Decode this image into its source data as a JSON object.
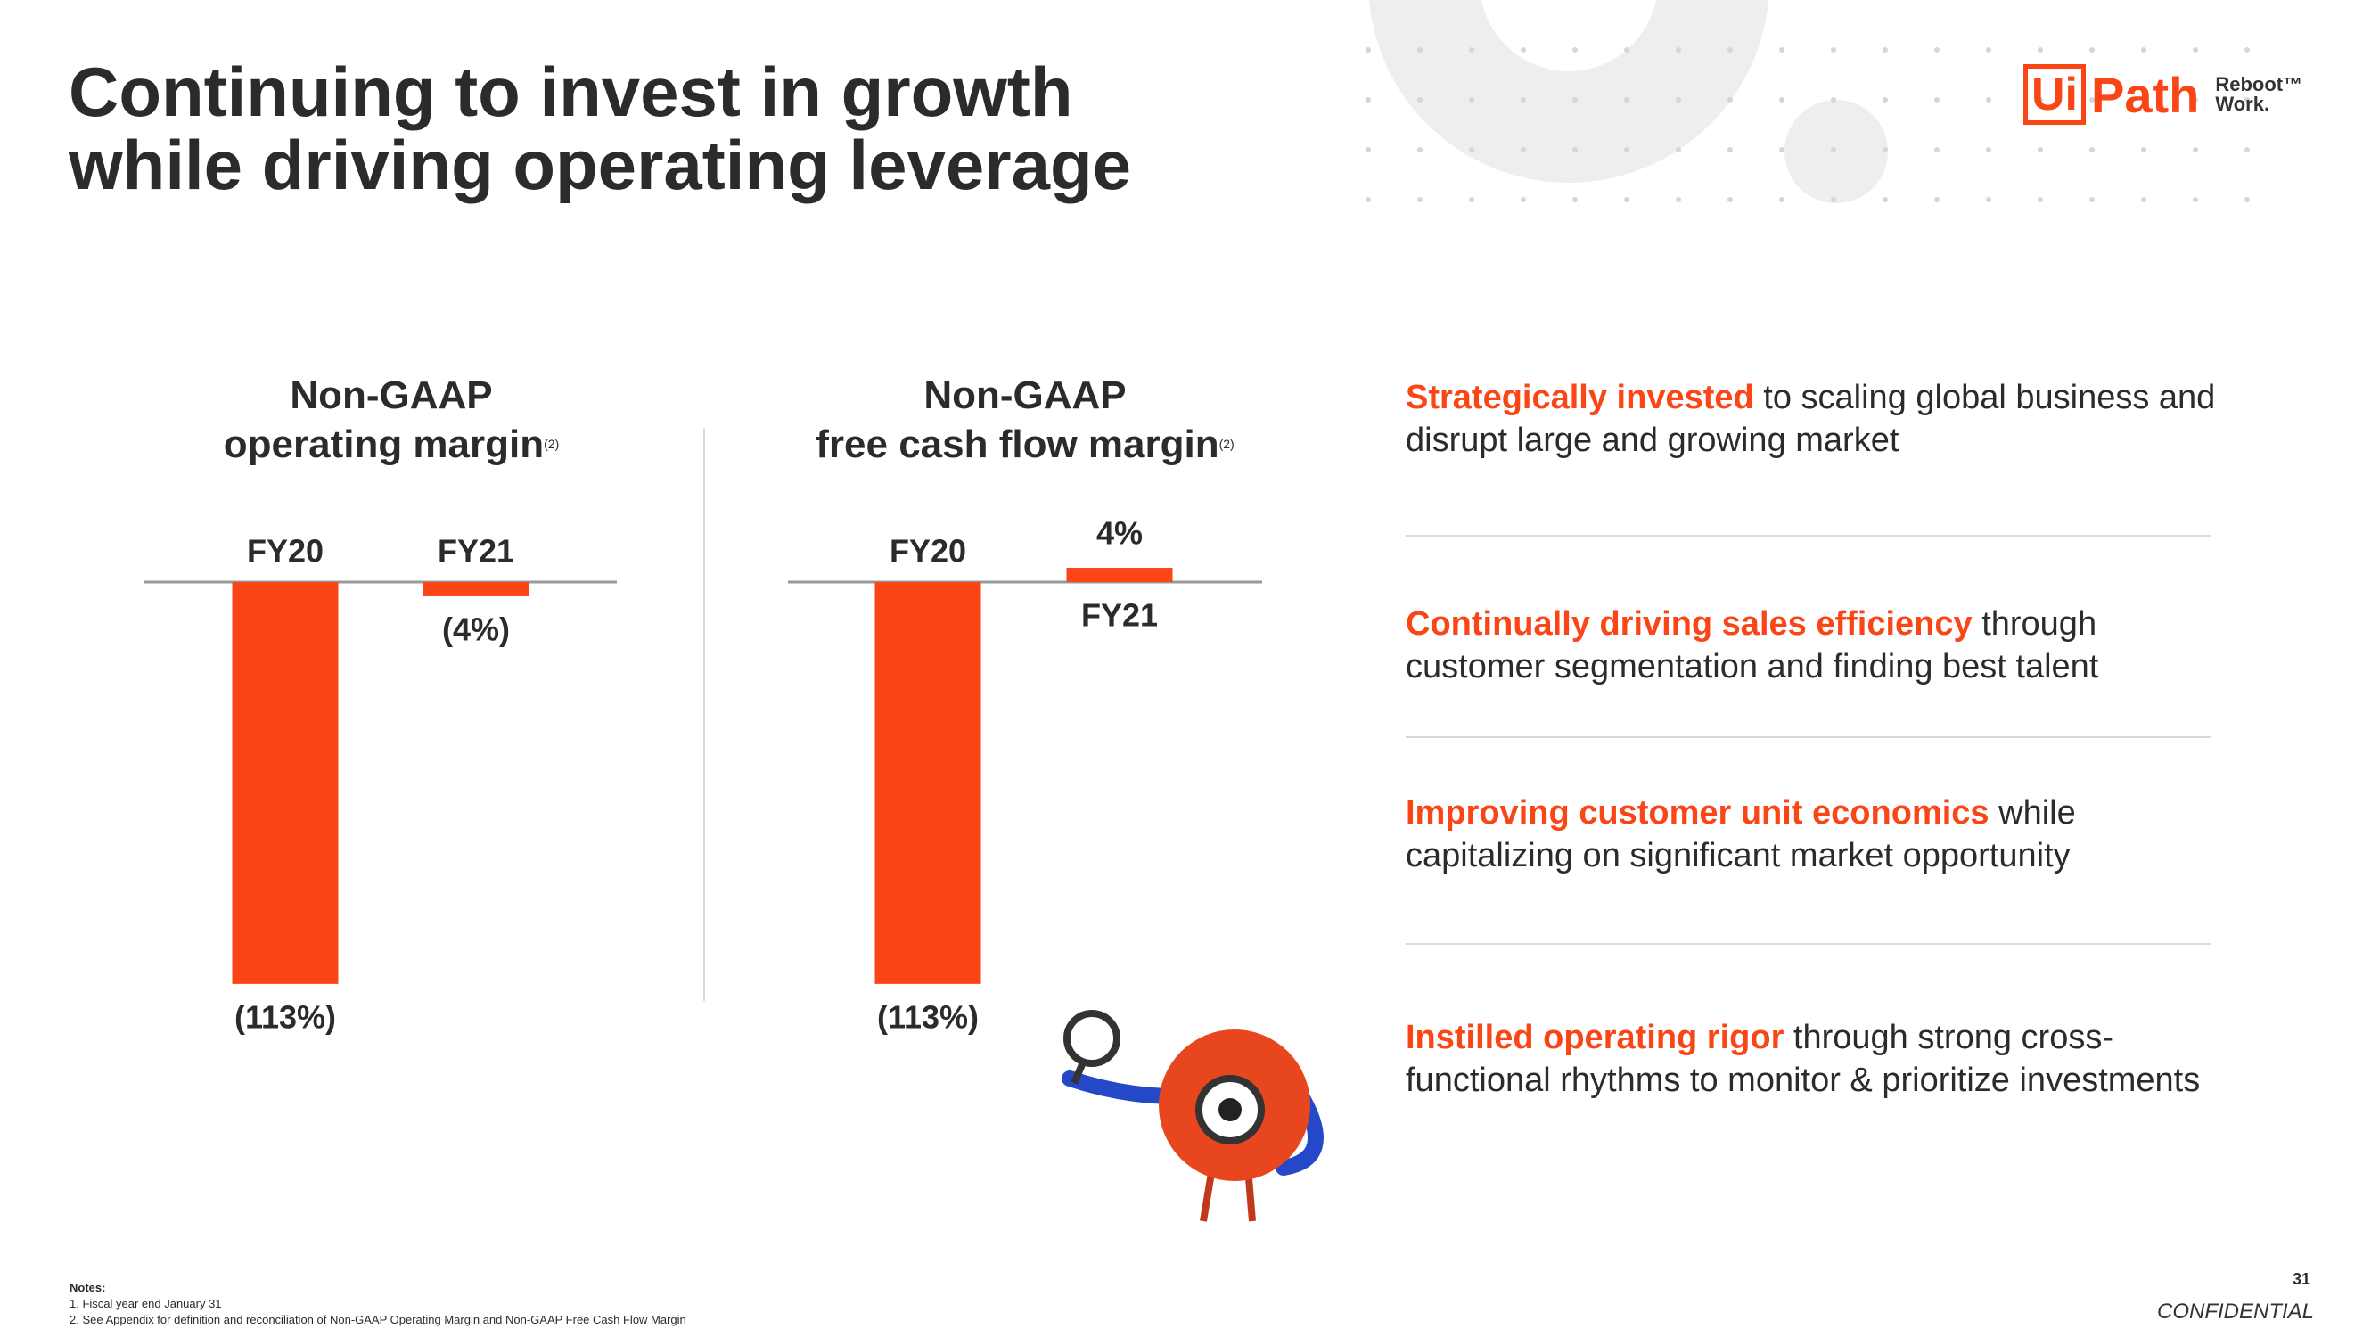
{
  "title": "Continuing to invest in growth\nwhile driving operating leverage",
  "logo": {
    "mark": "Ui",
    "name": "Path",
    "tagline_1": "Reboot™",
    "tagline_2": "Work."
  },
  "chart_data": [
    {
      "type": "bar",
      "title": "Non-GAAP\noperating margin",
      "title_note": "(2)",
      "categories": [
        "FY20",
        "FY21"
      ],
      "values": [
        -113,
        -4
      ],
      "value_labels": [
        "(113%)",
        "(4%)"
      ],
      "color": "#fa4616"
    },
    {
      "type": "bar",
      "title": "Non-GAAP\nfree cash flow margin",
      "title_note": "(2)",
      "categories": [
        "FY20",
        "FY21"
      ],
      "values": [
        -113,
        4
      ],
      "value_labels": [
        "(113%)",
        "4%"
      ],
      "color": "#fa4616"
    }
  ],
  "points": [
    {
      "highlight": "Strategically invested",
      "text": " to scaling global business and disrupt large and growing market"
    },
    {
      "highlight": "Continually driving sales efficiency",
      "text": " through customer segmentation and finding best talent"
    },
    {
      "highlight": "Improving customer unit economics",
      "text": " while capitalizing on significant market opportunity"
    },
    {
      "highlight": "Instilled operating rigor",
      "text": " through strong cross-functional rhythms to monitor & prioritize investments"
    }
  ],
  "notes": {
    "heading": "Notes:",
    "items": [
      "1. Fiscal year end January 31",
      "2. See Appendix for definition and reconciliation of Non-GAAP Operating Margin and Non-GAAP Free Cash Flow Margin"
    ]
  },
  "footer": {
    "page": "31",
    "label": "CONFIDENTIAL"
  }
}
